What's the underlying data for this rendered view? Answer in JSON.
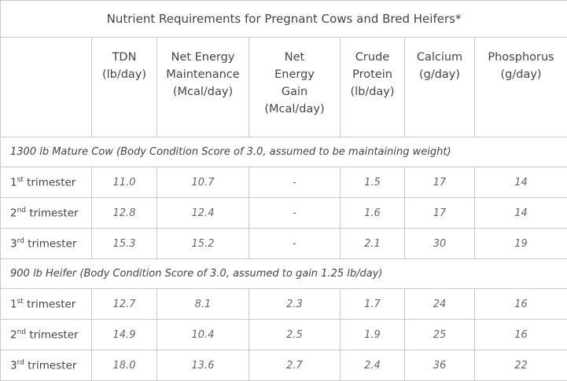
{
  "title": "Nutrient Requirements for Pregnant Cows and Bred Heifers*",
  "columns": [
    [
      "TDN",
      "(lb/day)"
    ],
    [
      "Net Energy",
      "Maintenance",
      "(Mcal/day)"
    ],
    [
      "Net",
      "Energy",
      "Gain",
      "(Mcal/day)"
    ],
    [
      "Crude",
      "Protein",
      "(lb/day)"
    ],
    [
      "Calcium",
      "(g/day)"
    ],
    [
      "Phosphorus",
      "(g/day)"
    ]
  ],
  "sections": [
    {
      "label": "1300 lb Mature Cow (Body Condition Score of 3.0, assumed to be maintaining weight)",
      "rows": [
        {
          "label": [
            "1",
            "st",
            "trimester"
          ],
          "values": [
            "11.0",
            "10.7",
            "-",
            "1.5",
            "17",
            "14"
          ]
        },
        {
          "label": [
            "2",
            "nd",
            "trimester"
          ],
          "values": [
            "12.8",
            "12.4",
            "-",
            "1.6",
            "17",
            "14"
          ]
        },
        {
          "label": [
            "3",
            "rd",
            "trimester"
          ],
          "values": [
            "15.3",
            "15.2",
            "-",
            "2.1",
            "30",
            "19"
          ]
        }
      ]
    },
    {
      "label": "900 lb Heifer (Body Condition Score of 3.0, assumed to gain 1.25 lb/day)",
      "rows": [
        {
          "label": [
            "1",
            "st",
            "trimester"
          ],
          "values": [
            "12.7",
            "8.1",
            "2.3",
            "1.7",
            "24",
            "16"
          ]
        },
        {
          "label": [
            "2",
            "nd",
            "trimester"
          ],
          "values": [
            "14.9",
            "10.4",
            "2.5",
            "1.9",
            "25",
            "16"
          ]
        },
        {
          "label": [
            "3",
            "rd",
            "trimester"
          ],
          "values": [
            "18.0",
            "13.6",
            "2.7",
            "2.4",
            "36",
            "22"
          ]
        }
      ]
    }
  ]
}
